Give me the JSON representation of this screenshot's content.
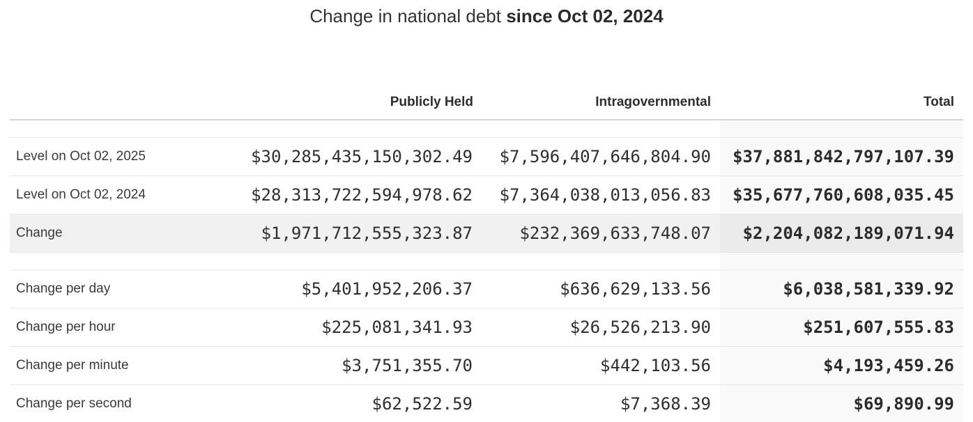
{
  "page": {
    "title_regular": "Change in national debt ",
    "title_bold": "since Oct 02, 2024"
  },
  "table": {
    "headers": {
      "label": "",
      "publicly_held": "Publicly Held",
      "intragovernmental": "Intragovernmental",
      "total": "Total"
    },
    "rows": [
      {
        "label": "Level on Oct 02, 2025",
        "publicly_held": "$30,285,435,150,302.49",
        "intragovernmental": "$7,596,407,646,804.90",
        "total": "$37,881,842,797,107.39",
        "highlight": false
      },
      {
        "label": "Level on Oct 02, 2024",
        "publicly_held": "$28,313,722,594,978.62",
        "intragovernmental": "$7,364,038,013,056.83",
        "total": "$35,677,760,608,035.45",
        "highlight": false
      },
      {
        "label": "Change",
        "publicly_held": "$1,971,712,555,323.87",
        "intragovernmental": "$232,369,633,748.07",
        "total": "$2,204,082,189,071.94",
        "highlight": true
      },
      {
        "label": "Change per day",
        "publicly_held": "$5,401,952,206.37",
        "intragovernmental": "$636,629,133.56",
        "total": "$6,038,581,339.92",
        "highlight": false
      },
      {
        "label": "Change per hour",
        "publicly_held": "$225,081,341.93",
        "intragovernmental": "$26,526,213.90",
        "total": "$251,607,555.83",
        "highlight": false
      },
      {
        "label": "Change per minute",
        "publicly_held": "$3,751,355.70",
        "intragovernmental": "$442,103.56",
        "total": "$4,193,459.26",
        "highlight": false
      },
      {
        "label": "Change per second",
        "publicly_held": "$62,522.59",
        "intragovernmental": "$7,368.39",
        "total": "$69,890.99",
        "highlight": false
      }
    ]
  },
  "colors": {
    "text": "#333333",
    "number_text": "#2e2e2e",
    "total_column_bg": "#f9f9f9",
    "highlight_row_bg": "#f1f1f1",
    "highlight_total_bg": "#ebebeb",
    "header_border": "#d5d5d5",
    "row_border": "#e8e8e8"
  }
}
